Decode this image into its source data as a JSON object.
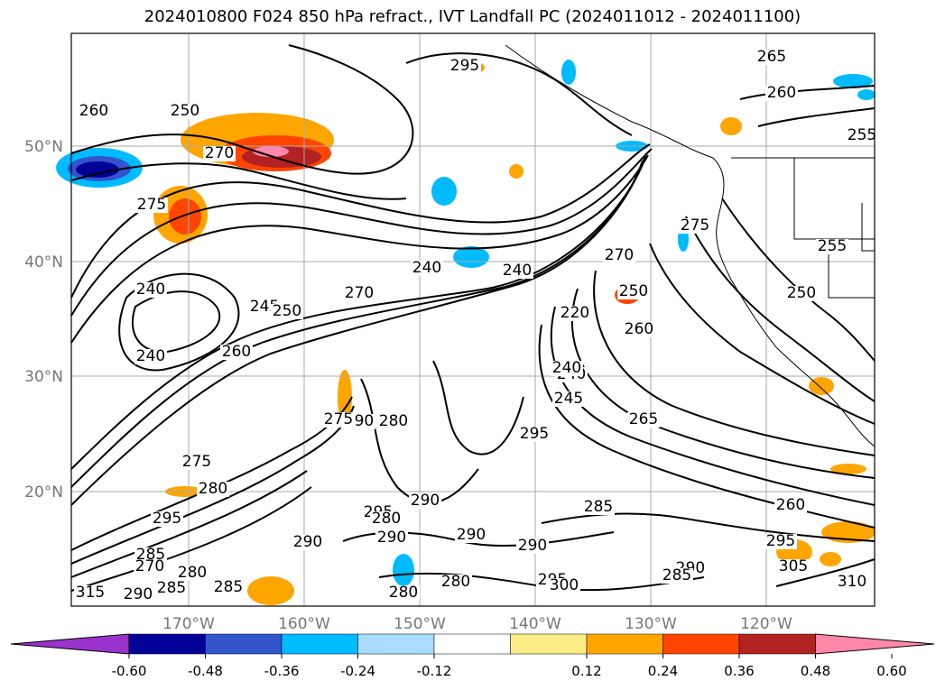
{
  "title": "2024010800 F024 850 hPa refract., IVT Landfall PC (2024011012 - 2024011100)",
  "lat_labels": [
    "50°N",
    "40°N",
    "30°N",
    "20°N"
  ],
  "lon_labels": [
    "170°W",
    "160°W",
    "150°W",
    "140°W",
    "130°W",
    "120°W"
  ],
  "contour_labels": [
    "265",
    "260",
    "255",
    "260",
    "270",
    "250",
    "275",
    "240",
    "240",
    "245",
    "240",
    "240",
    "260",
    "250",
    "270",
    "240",
    "270",
    "275",
    "255",
    "250",
    "250",
    "260",
    "220",
    "240",
    "245",
    "265",
    "280",
    "290",
    "295",
    "275",
    "275",
    "280",
    "295",
    "290",
    "290",
    "280",
    "285",
    "290",
    "290",
    "295",
    "300",
    "290",
    "285",
    "285",
    "260",
    "295",
    "305",
    "310",
    "295",
    "285",
    "280",
    "290",
    "270",
    "315",
    "290",
    "280",
    "285",
    "280",
    "295"
  ],
  "colorbar": {
    "ticks": [
      "-0.60",
      "-0.48",
      "-0.36",
      "-0.24",
      "-0.12",
      "0.12",
      "0.24",
      "0.36",
      "0.48",
      "0.60"
    ],
    "colors": [
      "#9933cc",
      "#000099",
      "#3355cc",
      "#00bbff",
      "#aaddff",
      "#ffffff",
      "#ffee88",
      "#ffa500",
      "#ff4500",
      "#b22222",
      "#ff88aa"
    ]
  }
}
